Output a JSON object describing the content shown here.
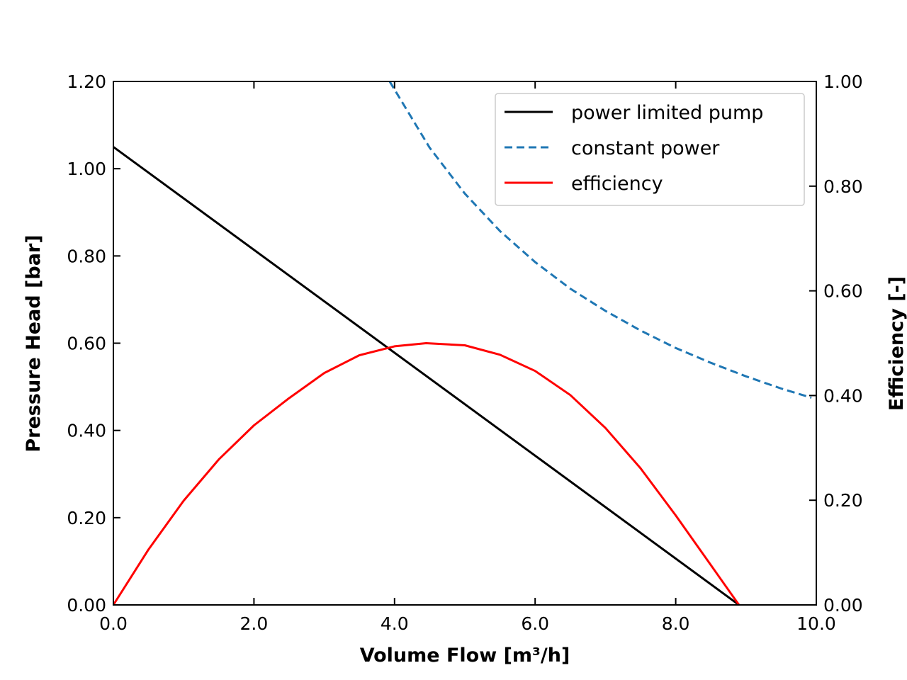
{
  "chart_data": {
    "type": "line",
    "xlabel": "Volume Flow [m³/h]",
    "ylabel": "Pressure Head [bar]",
    "y2label": "Efficiency [-]",
    "xlim": [
      0,
      10
    ],
    "ylim": [
      0,
      1.2
    ],
    "y2lim": [
      0,
      1.0
    ],
    "xticks": [
      "0.0",
      "2.0",
      "4.0",
      "6.0",
      "8.0",
      "10.0"
    ],
    "yticks": [
      "0.00",
      "0.20",
      "0.40",
      "0.60",
      "0.80",
      "1.00",
      "1.20"
    ],
    "y2ticks": [
      "0.00",
      "0.20",
      "0.40",
      "0.60",
      "0.80",
      "1.00"
    ],
    "grid": false,
    "legend_position": "top-right",
    "series": [
      {
        "name": "power limited pump",
        "axis": "left",
        "color": "#000000",
        "dash": "solid",
        "x": [
          0.0,
          8.9
        ],
        "y": [
          1.05,
          0.0
        ]
      },
      {
        "name": "constant power",
        "axis": "left",
        "color": "#1f77b4",
        "dash": "dashed",
        "x": [
          3.93,
          4.5,
          5.0,
          5.5,
          6.0,
          6.5,
          7.0,
          7.5,
          8.0,
          8.5,
          9.0,
          9.5,
          9.93
        ],
        "y": [
          1.2,
          1.048,
          0.943,
          0.857,
          0.786,
          0.725,
          0.674,
          0.629,
          0.589,
          0.555,
          0.524,
          0.496,
          0.475
        ]
      },
      {
        "name": "efficiency",
        "axis": "right",
        "color": "#ff0000",
        "dash": "solid",
        "x": [
          0.0,
          0.5,
          1.0,
          1.5,
          2.0,
          2.5,
          3.0,
          3.5,
          4.0,
          4.45,
          5.0,
          5.5,
          6.0,
          6.5,
          7.0,
          7.5,
          8.0,
          8.5,
          8.9
        ],
        "y": [
          0.0,
          0.106,
          0.199,
          0.278,
          0.343,
          0.395,
          0.443,
          0.477,
          0.494,
          0.5,
          0.496,
          0.478,
          0.447,
          0.401,
          0.338,
          0.261,
          0.171,
          0.076,
          0.0
        ]
      }
    ]
  }
}
